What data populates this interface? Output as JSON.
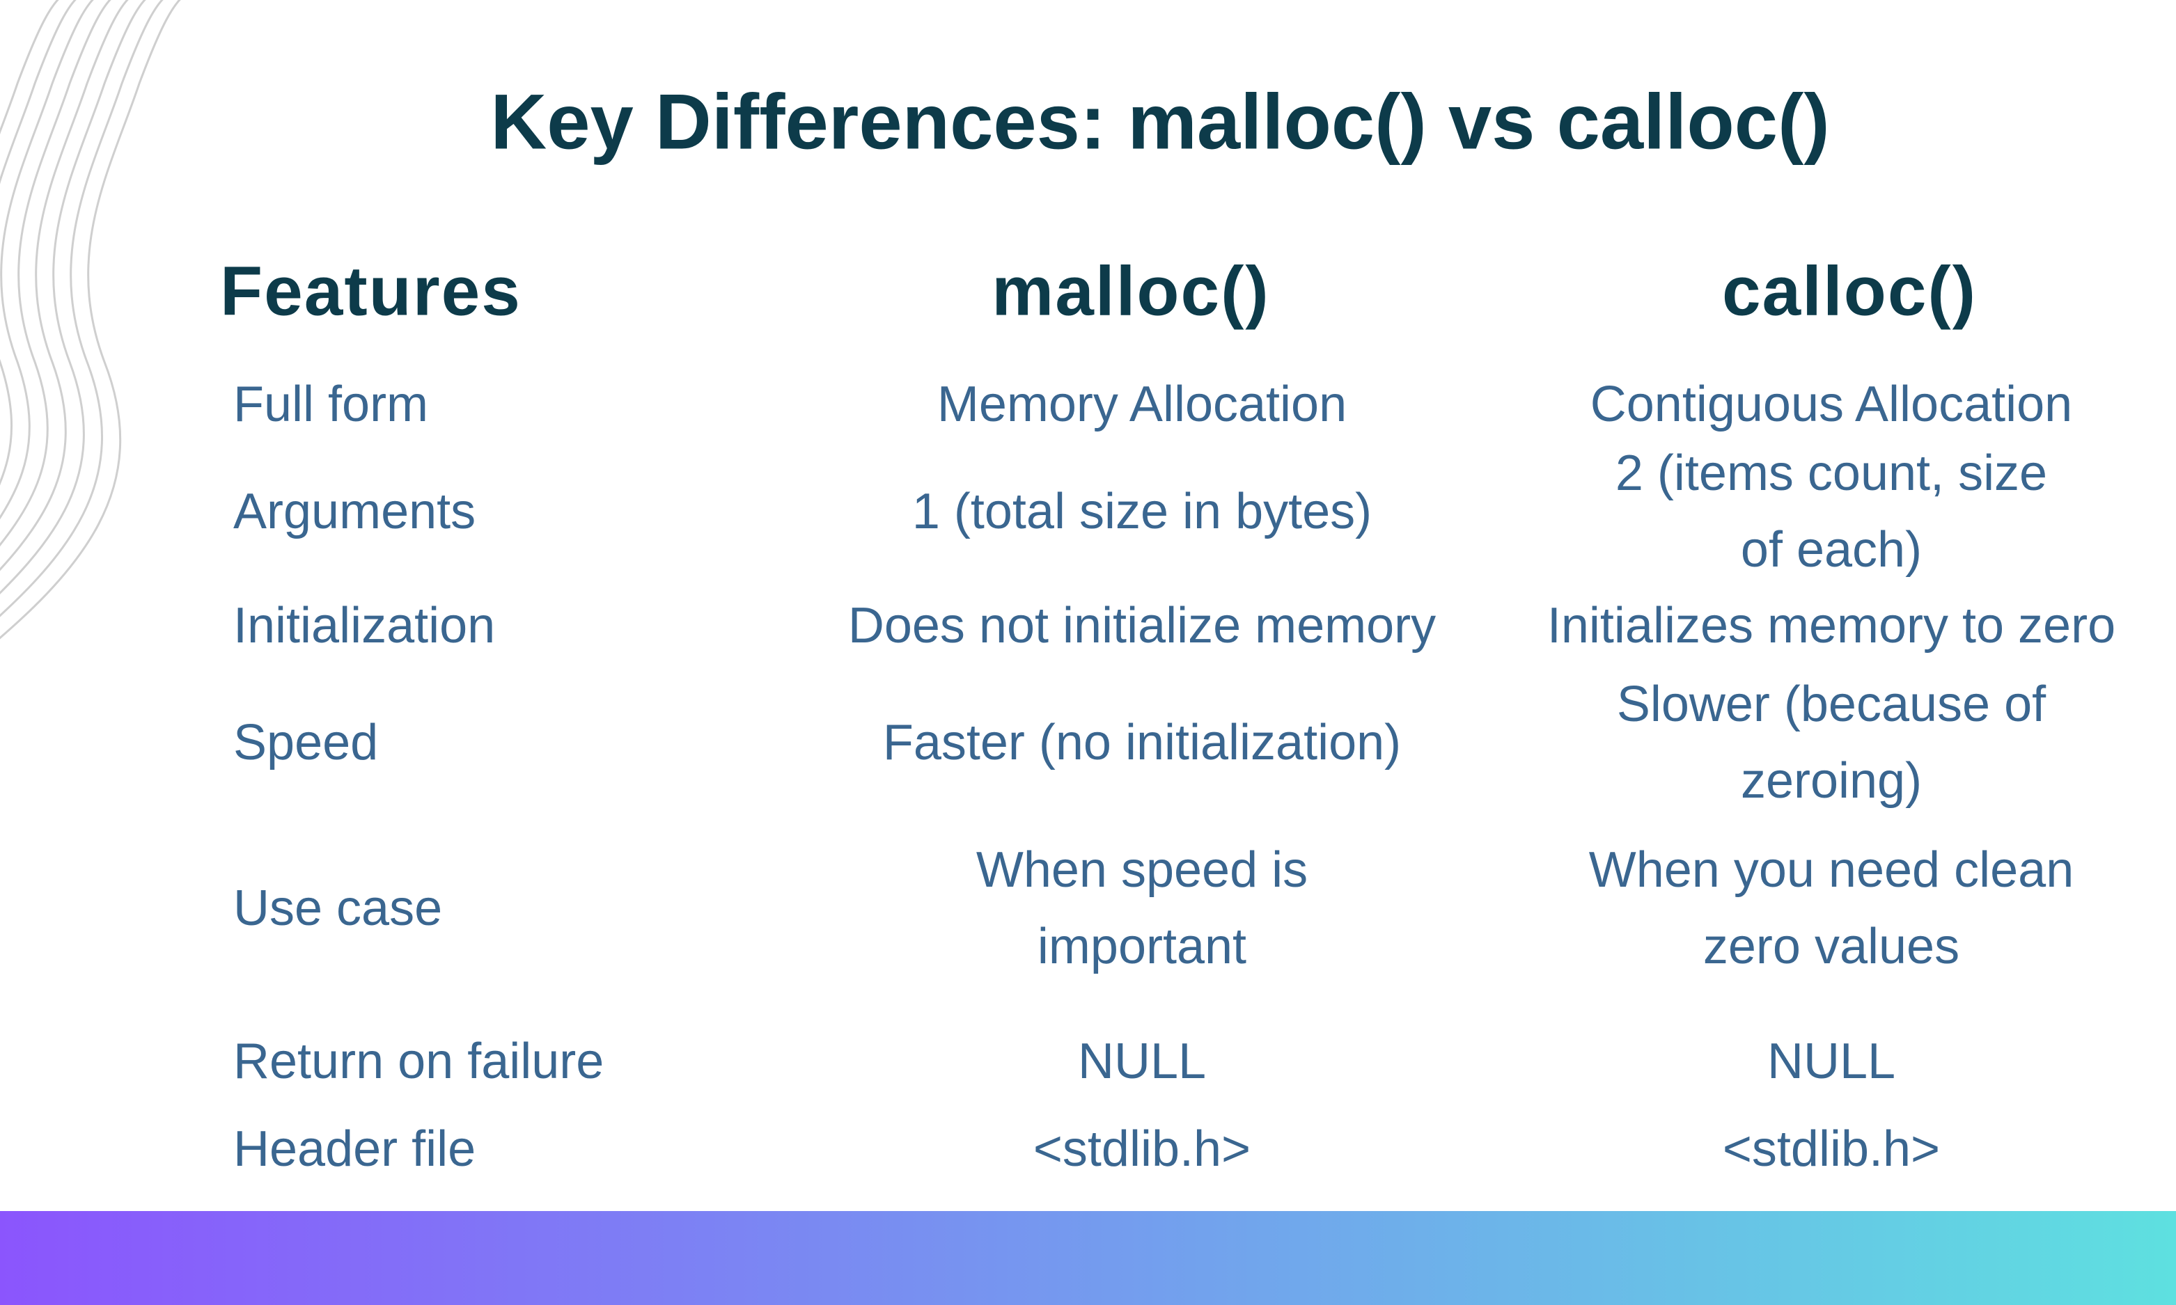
{
  "title": "Key Differences: malloc() vs calloc()",
  "table": {
    "header": [
      "Features",
      "malloc()",
      "calloc()"
    ],
    "rows": [
      [
        [
          "Full form"
        ],
        [
          "Memory Allocation"
        ],
        [
          "Contiguous Allocation"
        ]
      ],
      [
        [
          "Arguments"
        ],
        [
          "1 (total size in bytes)"
        ],
        [
          "2 (items count, size",
          "of each)"
        ]
      ],
      [
        [
          "Initialization"
        ],
        [
          "Does not initialize memory"
        ],
        [
          "Initializes memory to zero"
        ]
      ],
      [
        [
          "Speed"
        ],
        [
          "Faster (no initialization)"
        ],
        [
          "Slower (because of",
          "zeroing)"
        ]
      ],
      [
        [
          "Use case"
        ],
        [
          "When speed is",
          "important"
        ],
        [
          "When you need clean",
          "zero values"
        ]
      ],
      [
        [
          "Return on failure"
        ],
        [
          "NULL"
        ],
        [
          "NULL"
        ]
      ],
      [
        [
          "Header file"
        ],
        [
          "<stdlib.h>"
        ],
        [
          "<stdlib.h>"
        ]
      ]
    ]
  }
}
